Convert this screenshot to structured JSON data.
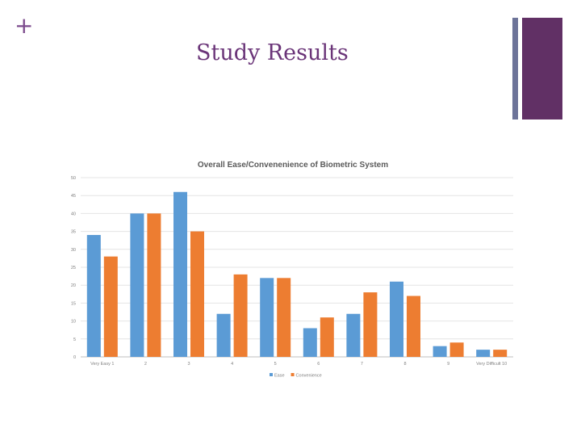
{
  "slide": {
    "plus_symbol": "+",
    "title": "Study Results"
  },
  "colors": {
    "accent_purple": "#613065",
    "accent_gray_blue": "#6d7499",
    "ease": "#5b9bd5",
    "convenience": "#ed7d31"
  },
  "chart_data": {
    "type": "bar",
    "title": "Overall Ease/Convenenience of Biometric System",
    "xlabel": "",
    "ylabel": "",
    "ylim": [
      0,
      50
    ],
    "yticks": [
      0,
      5,
      10,
      15,
      20,
      25,
      30,
      35,
      40,
      45,
      50
    ],
    "grid": true,
    "legend_position": "bottom",
    "categories": [
      "Very Easy 1",
      "2",
      "3",
      "4",
      "5",
      "6",
      "7",
      "8",
      "9",
      "Very Difficult 10"
    ],
    "series": [
      {
        "name": "Ease",
        "color": "#5b9bd5",
        "values": [
          34,
          40,
          46,
          12,
          22,
          8,
          12,
          21,
          3,
          2
        ]
      },
      {
        "name": "Convenience",
        "color": "#ed7d31",
        "values": [
          28,
          40,
          35,
          23,
          22,
          11,
          18,
          17,
          4,
          2
        ]
      }
    ]
  }
}
